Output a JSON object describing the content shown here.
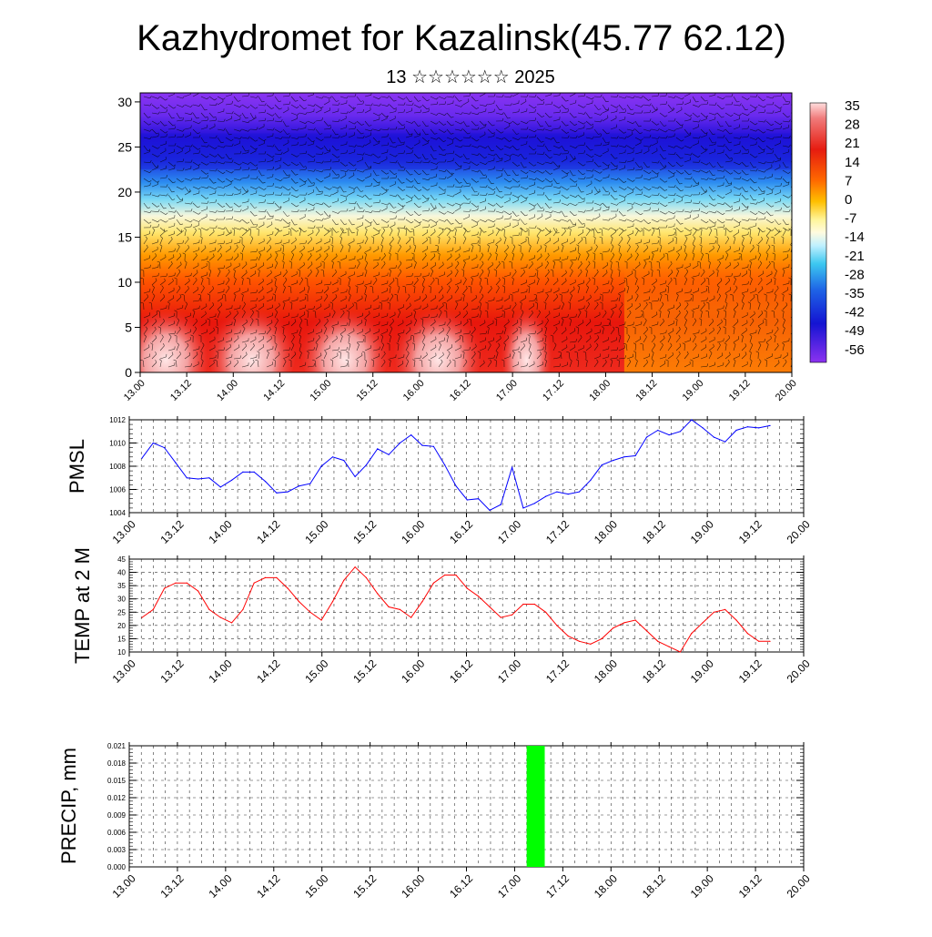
{
  "title": "Kazhydromet for Kazalinsk(45.77 62.12)",
  "subtitle": "13 ☆☆☆☆☆☆ 2025",
  "time_ticks": [
    "13.00",
    "13.12",
    "14.00",
    "14.12",
    "15.00",
    "15.12",
    "16.00",
    "16.12",
    "17.00",
    "17.12",
    "18.00",
    "18.12",
    "19.00",
    "19.12",
    "20.00"
  ],
  "chart_data": [
    {
      "type": "heatmap",
      "name": "height-time cross-section",
      "x_ticks": [
        "13.00",
        "13.12",
        "14.00",
        "14.12",
        "15.00",
        "15.12",
        "16.00",
        "16.12",
        "17.00",
        "17.12",
        "18.00",
        "18.12",
        "19.00",
        "19.12",
        "20.00"
      ],
      "y_ticks": [
        0,
        5,
        10,
        15,
        20,
        25,
        30
      ],
      "ylim": [
        0,
        31
      ],
      "colorbar_labels": [
        "35",
        "28",
        "21",
        "14",
        "7",
        "0",
        "-7",
        "-14",
        "-21",
        "-28",
        "-35",
        "-42",
        "-49",
        "-56"
      ],
      "colorbar_range": [
        -60,
        38
      ],
      "overlay": "wind barbs"
    },
    {
      "type": "line",
      "ylabel": "PMSL",
      "color": "#0000ff",
      "ylim": [
        1004,
        1012
      ],
      "y_ticks": [
        1004,
        1006,
        1008,
        1010,
        1012
      ],
      "x_ticks": [
        "13.00",
        "13.12",
        "14.00",
        "14.12",
        "15.00",
        "15.12",
        "16.00",
        "16.12",
        "17.00",
        "17.12",
        "18.00",
        "18.12",
        "19.00",
        "19.12",
        "20.00"
      ],
      "values": [
        1008.7,
        1010.0,
        1009.6,
        1008.3,
        1007.0,
        1006.9,
        1007.0,
        1006.2,
        1006.8,
        1007.5,
        1007.5,
        1006.7,
        1005.7,
        1005.8,
        1006.3,
        1006.5,
        1008.0,
        1008.8,
        1008.5,
        1007.1,
        1008.1,
        1009.5,
        1009.0,
        1010.0,
        1010.7,
        1009.8,
        1009.7,
        1008.1,
        1006.3,
        1005.1,
        1005.2,
        1004.2,
        1004.7,
        1007.9,
        1004.4,
        1004.8,
        1005.4,
        1005.8,
        1005.6,
        1005.8,
        1006.8,
        1008.1,
        1008.5,
        1008.8,
        1008.9,
        1010.5,
        1011.1,
        1010.7,
        1011.0,
        1012.0,
        1011.3,
        1010.5,
        1010.1,
        1011.1,
        1011.4,
        1011.3,
        1011.5
      ]
    },
    {
      "type": "line",
      "ylabel": "TEMP at 2 M",
      "color": "#ff0000",
      "ylim": [
        10,
        45
      ],
      "y_ticks": [
        10,
        15,
        20,
        25,
        30,
        35,
        40,
        45
      ],
      "x_ticks": [
        "13.00",
        "13.12",
        "14.00",
        "14.12",
        "15.00",
        "15.12",
        "16.00",
        "16.12",
        "17.00",
        "17.12",
        "18.00",
        "18.12",
        "19.00",
        "19.12",
        "20.00"
      ],
      "values": [
        23,
        26,
        34,
        36,
        36,
        33,
        26,
        23,
        21,
        26,
        36,
        38,
        38,
        34,
        29,
        25,
        22,
        29,
        37,
        42,
        38,
        32,
        27,
        26,
        23,
        29,
        36,
        39,
        39,
        34,
        31,
        27,
        23,
        24,
        28,
        28,
        25,
        20,
        16,
        14,
        13,
        15,
        19,
        21,
        22,
        18,
        14,
        12,
        10,
        17,
        21,
        25,
        26,
        22,
        17,
        14,
        14
      ]
    },
    {
      "type": "bar",
      "ylabel": "PRECIP, mm",
      "color": "#00ff00",
      "ylim": [
        0,
        0.021
      ],
      "y_ticks": [
        "0.000",
        "0.003",
        "0.006",
        "0.009",
        "0.012",
        "0.015",
        "0.018",
        "0.021"
      ],
      "x_ticks": [
        "13.00",
        "13.12",
        "14.00",
        "14.12",
        "15.00",
        "15.12",
        "16.00",
        "16.12",
        "17.00",
        "17.12",
        "18.00",
        "18.12",
        "19.00",
        "19.12",
        "20.00"
      ],
      "bars": [
        {
          "x_hours": 99,
          "width_hours": 3,
          "value": 0.021
        }
      ]
    }
  ]
}
